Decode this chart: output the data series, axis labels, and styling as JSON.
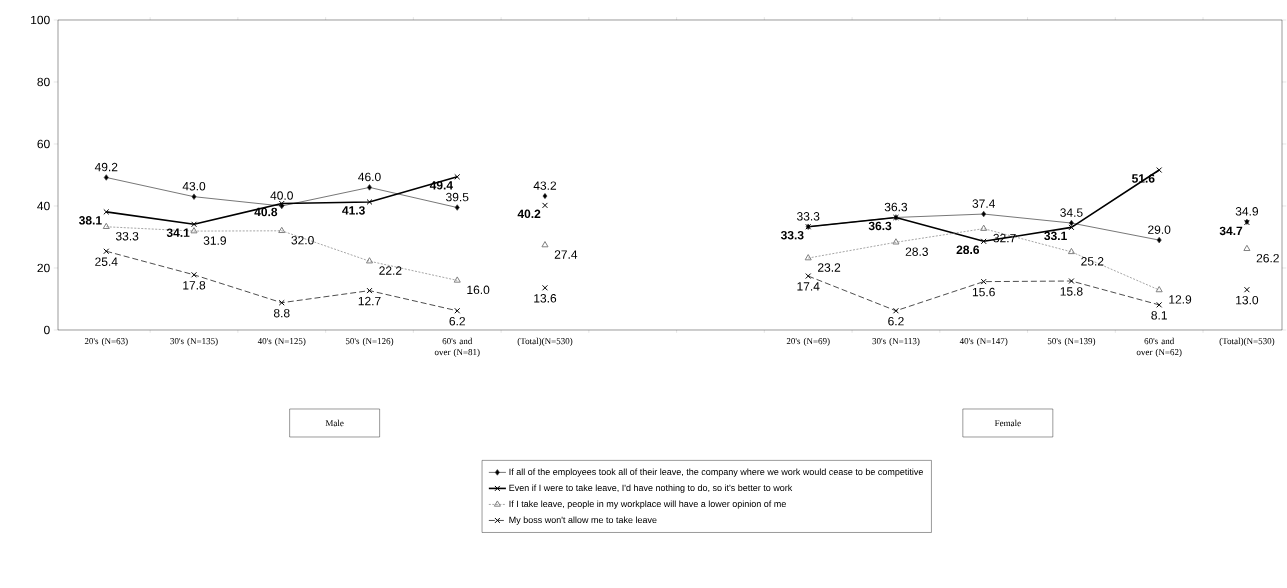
{
  "chart_data": {
    "type": "line",
    "categories": [
      "20's (N=63)",
      "30's (N=135)",
      "40's (N=125)",
      "50's (N=126)",
      "60's and over (N=81)",
      "(Total)(N=530)",
      null,
      null,
      "20's (N=69)",
      "30's (N=113)",
      "40's (N=147)",
      "50's (N=139)",
      "60's and over (N=62)",
      "(Total)(N=530)"
    ],
    "ylim": [
      0,
      100
    ],
    "yticks": [
      0,
      20,
      40,
      60,
      80,
      100
    ],
    "series": [
      {
        "name": "If all of the employees took all of their leave, the company where we work would cease to be competitive",
        "color": "#3c3c3c",
        "marker": "diamond",
        "line_style": "solid",
        "values": [
          49.2,
          43.0,
          40.0,
          46.0,
          39.5,
          null,
          null,
          null,
          33.3,
          36.3,
          37.4,
          34.5,
          29.0,
          null
        ],
        "value_labels": [
          "49.2",
          "43.0",
          "40.0",
          "46.0",
          "39.5",
          null,
          null,
          null,
          "33.3",
          "36.3",
          "37.4",
          "34.5",
          "29.0",
          null
        ]
      },
      {
        "name": "Even if I were to take leave, I'd have nothing to do, so it's better to work",
        "color": "#000000",
        "marker": "cross",
        "line_style": "solid",
        "values": [
          38.1,
          34.1,
          40.8,
          41.3,
          49.4,
          null,
          null,
          null,
          33.3,
          36.3,
          28.6,
          33.1,
          51.6,
          null
        ],
        "value_labels": [
          "38.1",
          "34.1",
          "40.8",
          "41.3",
          "49.4",
          null,
          null,
          null,
          "33.3",
          "36.3",
          "28.6",
          "33.1",
          "51.6",
          null
        ]
      },
      {
        "name": "If I take leave, people in my workplace will have a lower opinion of me",
        "color": "#808080",
        "marker": "triangle",
        "line_style": "dotted",
        "values": [
          33.3,
          31.9,
          32.0,
          22.2,
          16.0,
          null,
          null,
          null,
          23.2,
          28.3,
          32.7,
          25.2,
          12.9,
          null
        ],
        "value_labels": [
          "33.3",
          "31.9",
          "32.0",
          "22.2",
          "16.0",
          null,
          null,
          null,
          "23.2",
          "28.3",
          "32.7",
          "25.2",
          "12.9",
          null
        ]
      },
      {
        "name": "My boss won't allow me to take leave",
        "color": "#000000",
        "marker": "cross",
        "line_style": "dashed",
        "values": [
          25.4,
          17.8,
          8.8,
          12.7,
          6.2,
          null,
          null,
          null,
          17.4,
          6.2,
          15.6,
          15.8,
          8.1,
          null
        ],
        "value_labels": [
          "25.4",
          "17.8",
          "8.8",
          "12.7",
          "6.2",
          null,
          null,
          null,
          "17.4",
          "6.2",
          "15.6",
          "15.8",
          "8.1",
          null
        ]
      },
      {
        "type": "scatter",
        "color": "#3c3c3c",
        "marker": "diamond",
        "values": [
          null,
          null,
          null,
          null,
          null,
          43.2,
          null,
          null,
          null,
          null,
          null,
          null,
          null,
          34.9
        ],
        "value_labels": [
          null,
          null,
          null,
          null,
          null,
          "43.2",
          null,
          null,
          null,
          null,
          null,
          null,
          null,
          "34.9"
        ]
      },
      {
        "type": "scatter",
        "color": "#000000",
        "marker": "cross",
        "values": [
          null,
          null,
          null,
          null,
          null,
          40.2,
          null,
          null,
          null,
          null,
          null,
          null,
          null,
          34.7
        ],
        "value_labels": [
          null,
          null,
          null,
          null,
          null,
          "40.2",
          null,
          null,
          null,
          null,
          null,
          null,
          null,
          "34.7"
        ]
      },
      {
        "type": "scatter",
        "color": "#808080",
        "marker": "triangle",
        "values": [
          null,
          null,
          null,
          null,
          null,
          27.4,
          null,
          null,
          null,
          null,
          null,
          null,
          null,
          26.2
        ],
        "value_labels": [
          null,
          null,
          null,
          null,
          null,
          "27.4",
          null,
          null,
          null,
          null,
          null,
          null,
          null,
          "26.2"
        ]
      },
      {
        "type": "scatter",
        "color": "#000000",
        "marker": "cross",
        "values": [
          null,
          null,
          null,
          null,
          null,
          13.6,
          null,
          null,
          null,
          null,
          null,
          null,
          null,
          13.0
        ],
        "value_labels": [
          null,
          null,
          null,
          null,
          null,
          "13.6",
          null,
          null,
          null,
          null,
          null,
          null,
          null,
          "13.0"
        ]
      }
    ],
    "legend": "bottom",
    "grid": false,
    "annotations": [
      "Male",
      "Female"
    ]
  }
}
